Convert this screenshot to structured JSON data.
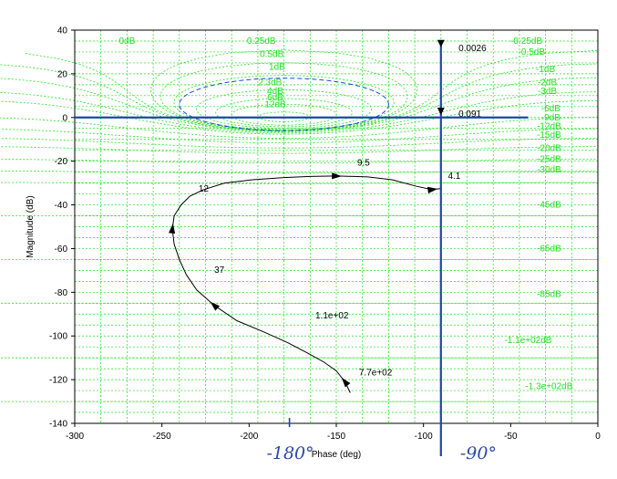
{
  "chart_data": {
    "type": "line",
    "title": "",
    "xlabel": "Phase (deg)",
    "ylabel": "Magnitude (dB)",
    "xlim": [
      -300,
      0
    ],
    "ylim": [
      -140,
      40
    ],
    "xticks": [
      "-300",
      "-250",
      "-200",
      "-150",
      "-100",
      "-50",
      "0"
    ],
    "yticks": [
      "40",
      "20",
      "0",
      "-20",
      "-40",
      "-60",
      "-80",
      "-100",
      "-120",
      "-140"
    ],
    "grid": "Nichols chart (constant closed-loop magnitude contours)",
    "colors": {
      "grid": "#22e022",
      "curve": "#000000",
      "annotation": "#1a4aa0",
      "contour_dashed": "#2244dd"
    },
    "series": [
      {
        "color": "#000000",
        "x": [
          -142,
          -145,
          -150,
          -157,
          -166,
          -178,
          -192,
          -207,
          -220,
          -230,
          -236,
          -240,
          -243,
          -244,
          -243,
          -239,
          -234,
          -226,
          -214,
          -198,
          -180,
          -165,
          -150,
          -140,
          -132,
          -118,
          -104,
          -95,
          -90
        ],
        "y": [
          -126,
          -121,
          -116,
          -112,
          -108,
          -103,
          -98,
          -93,
          -86,
          -79,
          -72,
          -65,
          -58,
          -51,
          -45,
          -40,
          -36,
          -33,
          -30,
          -28.5,
          -27.5,
          -27,
          -26.8,
          -27,
          -27.2,
          -28.5,
          -31.5,
          -33,
          -32.5
        ]
      }
    ],
    "point_labels": [
      {
        "text": "7.7e+02",
        "x": -137,
        "y": -118
      },
      {
        "text": "1.1e+02",
        "x": -162,
        "y": -92
      },
      {
        "text": "37",
        "x": -220,
        "y": -71
      },
      {
        "text": "12",
        "x": -229,
        "y": -34
      },
      {
        "text": "9.5",
        "x": -138,
        "y": -22
      },
      {
        "text": "4.1",
        "x": -86,
        "y": -28
      }
    ],
    "gain_labels_left": [
      {
        "text": "0dB",
        "x": -270,
        "y": 35
      },
      {
        "text": "0.25dB",
        "x": -193,
        "y": 35
      },
      {
        "text": "0.5dB",
        "x": -187,
        "y": 29
      },
      {
        "text": "1dB",
        "x": -184,
        "y": 23
      },
      {
        "text": "2.3dB",
        "x": -188,
        "y": 16
      },
      {
        "text": "4dB",
        "x": -185,
        "y": 12
      },
      {
        "text": "6dB",
        "x": -185,
        "y": 9
      },
      {
        "text": "12dB",
        "x": -185,
        "y": 6
      }
    ],
    "gain_labels_right": [
      {
        "text": "-0.25dB",
        "x": -41,
        "y": 35
      },
      {
        "text": "-0.5dB",
        "x": -38,
        "y": 30
      },
      {
        "text": "-1dB",
        "x": -30,
        "y": 22
      },
      {
        "text": "-2dB",
        "x": -29,
        "y": 16
      },
      {
        "text": "-3dB",
        "x": -29,
        "y": 12
      },
      {
        "text": "-6dB",
        "x": -27,
        "y": 4
      },
      {
        "text": "-9dB",
        "x": -27,
        "y": 0
      },
      {
        "text": "-12dB",
        "x": -28,
        "y": -4
      },
      {
        "text": "-15dB",
        "x": -28,
        "y": -8
      },
      {
        "text": "-20dB",
        "x": -28,
        "y": -14
      },
      {
        "text": "-25dB",
        "x": -28,
        "y": -19
      },
      {
        "text": "-30dB",
        "x": -28,
        "y": -24
      },
      {
        "text": "-45dB",
        "x": -28,
        "y": -40
      },
      {
        "text": "-65dB",
        "x": -28,
        "y": -60
      },
      {
        "text": "-85dB",
        "x": -28,
        "y": -81
      },
      {
        "text": "-1.1e+02dB",
        "x": -40,
        "y": -102
      },
      {
        "text": "-1.3e+02dB",
        "x": -28,
        "y": -123
      }
    ],
    "annotations": [
      {
        "text": "0.0026",
        "x": -82,
        "y": 32
      },
      {
        "text": "0.091",
        "x": -82,
        "y": 2
      }
    ],
    "handwritten": [
      {
        "text": "-180°",
        "x": -190,
        "y": -147
      },
      {
        "text": "-90°",
        "x": -79,
        "y": -147
      }
    ]
  }
}
